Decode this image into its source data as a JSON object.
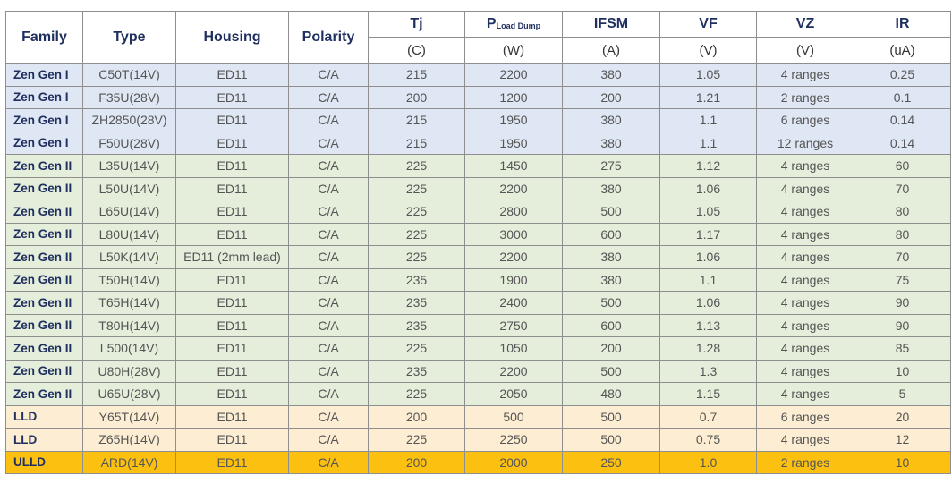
{
  "table": {
    "columns": [
      {
        "label": "Family"
      },
      {
        "label": "Type"
      },
      {
        "label": "Housing"
      },
      {
        "label": "Polarity"
      },
      {
        "label": "Tj",
        "unit": "(C)"
      },
      {
        "label": "P",
        "sub": "Load Dump",
        "unit": "(W)"
      },
      {
        "label": "IFSM",
        "unit": "(A)"
      },
      {
        "label": "VF",
        "unit": "(V)"
      },
      {
        "label": "VZ",
        "unit": "(V)"
      },
      {
        "label": "IR",
        "unit": "(uA)"
      }
    ],
    "rows": [
      {
        "color": "#dee7f3",
        "cells": [
          "Zen Gen I",
          "C50T(14V)",
          "ED11",
          "C/A",
          "215",
          "2200",
          "380",
          "1.05",
          "4 ranges",
          "0.25"
        ]
      },
      {
        "color": "#dee7f3",
        "cells": [
          "Zen Gen I",
          "F35U(28V)",
          "ED11",
          "C/A",
          "200",
          "1200",
          "200",
          "1.21",
          "2 ranges",
          "0.1"
        ]
      },
      {
        "color": "#dee7f3",
        "cells": [
          "Zen Gen I",
          "ZH2850(28V)",
          "ED11",
          "C/A",
          "215",
          "1950",
          "380",
          "1.1",
          "6 ranges",
          "0.14"
        ]
      },
      {
        "color": "#dee7f3",
        "cells": [
          "Zen Gen I",
          "F50U(28V)",
          "ED11",
          "C/A",
          "215",
          "1950",
          "380",
          "1.1",
          "12 ranges",
          "0.14"
        ]
      },
      {
        "color": "#e4eedb",
        "cells": [
          "Zen Gen II",
          "L35U(14V)",
          "ED11",
          "C/A",
          "225",
          "1450",
          "275",
          "1.12",
          "4 ranges",
          "60"
        ]
      },
      {
        "color": "#e4eedb",
        "cells": [
          "Zen Gen II",
          "L50U(14V)",
          "ED11",
          "C/A",
          "225",
          "2200",
          "380",
          "1.06",
          "4 ranges",
          "70"
        ]
      },
      {
        "color": "#e4eedb",
        "cells": [
          "Zen Gen II",
          "L65U(14V)",
          "ED11",
          "C/A",
          "225",
          "2800",
          "500",
          "1.05",
          "4 ranges",
          "80"
        ]
      },
      {
        "color": "#e4eedb",
        "cells": [
          "Zen Gen II",
          "L80U(14V)",
          "ED11",
          "C/A",
          "225",
          "3000",
          "600",
          "1.17",
          "4 ranges",
          "80"
        ]
      },
      {
        "color": "#e4eedb",
        "cells": [
          "Zen Gen II",
          "L50K(14V)",
          "ED11 (2mm lead)",
          "C/A",
          "225",
          "2200",
          "380",
          "1.06",
          "4 ranges",
          "70"
        ]
      },
      {
        "color": "#e4eedb",
        "cells": [
          "Zen Gen II",
          "T50H(14V)",
          "ED11",
          "C/A",
          "235",
          "1900",
          "380",
          "1.1",
          "4 ranges",
          "75"
        ]
      },
      {
        "color": "#e4eedb",
        "cells": [
          "Zen Gen II",
          "T65H(14V)",
          "ED11",
          "C/A",
          "235",
          "2400",
          "500",
          "1.06",
          "4 ranges",
          "90"
        ]
      },
      {
        "color": "#e4eedb",
        "cells": [
          "Zen Gen II",
          "T80H(14V)",
          "ED11",
          "C/A",
          "235",
          "2750",
          "600",
          "1.13",
          "4 ranges",
          "90"
        ]
      },
      {
        "color": "#e4eedb",
        "cells": [
          "Zen Gen II",
          "L500(14V)",
          "ED11",
          "C/A",
          "225",
          "1050",
          "200",
          "1.28",
          "4 ranges",
          "85"
        ]
      },
      {
        "color": "#e4eedb",
        "cells": [
          "Zen Gen II",
          "U80H(28V)",
          "ED11",
          "C/A",
          "235",
          "2200",
          "500",
          "1.3",
          "4 ranges",
          "10"
        ]
      },
      {
        "color": "#e4eedb",
        "cells": [
          "Zen Gen II",
          "U65U(28V)",
          "ED11",
          "C/A",
          "225",
          "2050",
          "480",
          "1.15",
          "4 ranges",
          "5"
        ]
      },
      {
        "color": "#fdeed3",
        "cells": [
          "LLD",
          "Y65T(14V)",
          "ED11",
          "C/A",
          "200",
          "500",
          "500",
          "0.7",
          "6 ranges",
          "20"
        ]
      },
      {
        "color": "#fdeed3",
        "cells": [
          "LLD",
          "Z65H(14V)",
          "ED11",
          "C/A",
          "225",
          "2250",
          "500",
          "0.75",
          "4 ranges",
          "12"
        ]
      },
      {
        "color": "#fbc010",
        "cells": [
          "ULLD",
          "ARD(14V)",
          "ED11",
          "C/A",
          "200",
          "2000",
          "250",
          "1.0",
          "2 ranges",
          "10"
        ]
      }
    ]
  }
}
